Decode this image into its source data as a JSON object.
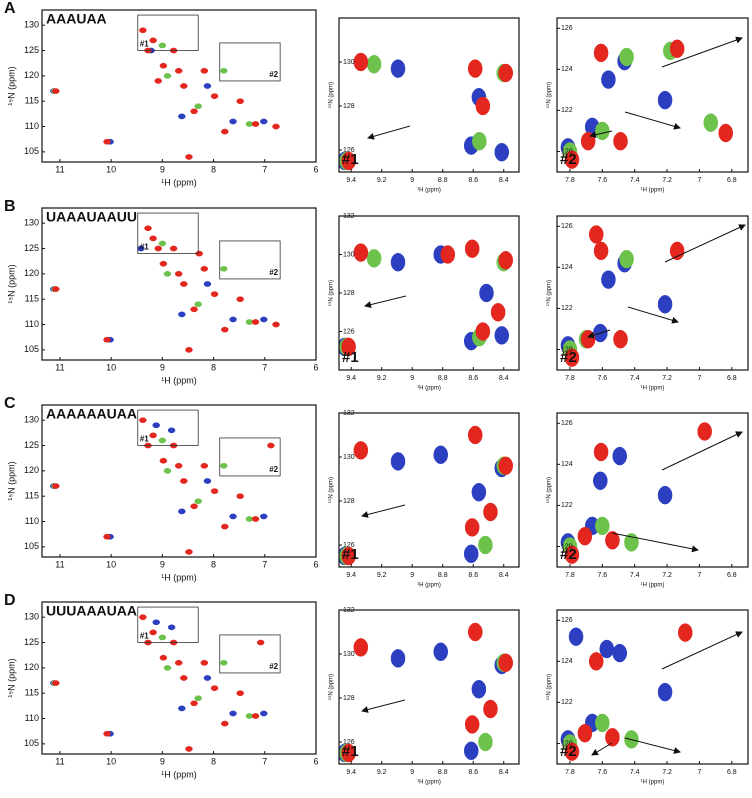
{
  "chart_data": [
    {
      "type": "scatter",
      "panel_label": "A",
      "title": "AAAUAA",
      "x_label": "¹H (ppm)",
      "y_label": "¹⁵N (ppm)",
      "annotations": [
        "#1",
        "#2"
      ],
      "xlim": [
        11.35,
        6.0
      ],
      "ylim": [
        103,
        133
      ],
      "xticks": [
        11,
        10,
        9,
        8,
        7,
        6
      ],
      "yticks": [
        105,
        110,
        115,
        120,
        125,
        130
      ],
      "series": [
        {
          "color": "#2b3fc0",
          "x": [
            11.1,
            10.0,
            8.6,
            8.1,
            7.6,
            9.2,
            7.0
          ],
          "y": [
            117,
            107,
            112,
            118,
            111,
            125,
            111
          ]
        },
        {
          "color": "#6cc24a",
          "x": [
            11.1,
            8.9,
            8.3,
            7.8,
            7.3,
            9.0
          ],
          "y": [
            117,
            120,
            114,
            121,
            110.5,
            126
          ]
        },
        {
          "color": "#e3261e",
          "x": [
            11.1,
            10.1,
            9.4,
            9.2,
            9.0,
            8.8,
            8.6,
            8.4,
            8.2,
            8.0,
            7.8,
            7.5,
            7.2,
            6.8,
            9.3,
            8.5,
            8.7,
            9.1
          ],
          "y": [
            117,
            107,
            129,
            127,
            122,
            125,
            118,
            113,
            121,
            116,
            109,
            115,
            110.5,
            110,
            125,
            104,
            121,
            119
          ]
        }
      ]
    },
    {
      "type": "scatter",
      "title": "#1",
      "x_label": "¹H (ppm)",
      "y_label": "¹⁵N (ppm)",
      "xlim": [
        9.48,
        8.3
      ],
      "ylim": [
        125,
        132
      ],
      "xticks": [
        9.4,
        9.2,
        9.0,
        8.8,
        8.6,
        8.4
      ],
      "yticks": [
        126,
        128,
        130
      ],
      "series": [
        {
          "color": "#2b3fc0",
          "x": [
            9.43,
            9.08,
            8.6,
            8.4,
            8.55
          ],
          "y": [
            125.5,
            129.7,
            126.2,
            125.9,
            128.4
          ]
        },
        {
          "color": "#6cc24a",
          "x": [
            9.43,
            9.25,
            8.56,
            8.4
          ],
          "y": [
            125.5,
            129.9,
            126.4,
            129.5
          ]
        },
        {
          "color": "#e3261e",
          "x": [
            9.43,
            9.35,
            8.6,
            8.4,
            8.55
          ],
          "y": [
            125.5,
            130.0,
            129.7,
            129.5,
            128.0
          ]
        }
      ]
    },
    {
      "type": "scatter",
      "title": "#2",
      "x_label": "¹H (ppm)",
      "y_label": "¹⁵N (ppm)",
      "xlim": [
        7.88,
        6.7
      ],
      "ylim": [
        119,
        126.5
      ],
      "xticks": [
        7.8,
        7.6,
        7.4,
        7.2,
        7.0,
        6.8
      ],
      "yticks": [
        120,
        122,
        124,
        126
      ],
      "series": [
        {
          "color": "#2b3fc0",
          "x": [
            7.8,
            7.65,
            7.2,
            7.45,
            7.55
          ],
          "y": [
            120.2,
            121.2,
            122.5,
            124.4,
            123.5
          ]
        },
        {
          "color": "#6cc24a",
          "x": [
            7.8,
            7.6,
            7.45,
            7.18,
            6.93
          ],
          "y": [
            120,
            121,
            124.6,
            124.9,
            121.4
          ]
        },
        {
          "color": "#e3261e",
          "x": [
            7.8,
            7.7,
            7.5,
            7.62,
            7.15,
            6.85
          ],
          "y": [
            119.6,
            120.5,
            120.5,
            124.8,
            125.0,
            120.9
          ]
        }
      ]
    },
    {
      "type": "scatter",
      "panel_label": "B",
      "title": "UAAAUAAUU",
      "x_label": "¹H (ppm)",
      "y_label": "¹⁵N (ppm)",
      "annotations": [
        "#1",
        "#2"
      ],
      "xlim": [
        11.35,
        6.0
      ],
      "ylim": [
        103,
        133
      ],
      "xticks": [
        11,
        10,
        9,
        8,
        7,
        6
      ],
      "yticks": [
        105,
        110,
        115,
        120,
        125,
        130
      ],
      "series": [
        {
          "color": "#2b3fc0",
          "x": [
            11.1,
            10.0,
            8.6,
            8.1,
            7.6,
            9.4,
            7.0
          ],
          "y": [
            117,
            107,
            112,
            118,
            111,
            125,
            111
          ]
        },
        {
          "color": "#6cc24a",
          "x": [
            11.1,
            8.9,
            8.3,
            7.8,
            7.3,
            9.0
          ],
          "y": [
            117,
            120,
            114,
            121,
            110.5,
            126
          ]
        },
        {
          "color": "#e3261e",
          "x": [
            11.1,
            10.1,
            9.3,
            9.2,
            9.0,
            8.8,
            8.6,
            8.4,
            8.2,
            8.0,
            7.8,
            7.5,
            7.2,
            6.8,
            9.1,
            8.5,
            8.7,
            8.3
          ],
          "y": [
            117,
            107,
            129,
            127,
            122,
            125,
            118,
            113,
            121,
            116,
            109,
            115,
            110.5,
            110,
            125,
            105,
            120,
            124
          ]
        }
      ]
    },
    {
      "type": "scatter",
      "title": "#1",
      "x_label": "¹H (ppm)",
      "y_label": "¹⁵N (ppm)",
      "xlim": [
        9.48,
        8.3
      ],
      "ylim": [
        124,
        132
      ],
      "xticks": [
        9.4,
        9.2,
        9.0,
        8.8,
        8.6,
        8.4
      ],
      "yticks": [
        126,
        128,
        130,
        132
      ],
      "series": [
        {
          "color": "#2b3fc0",
          "x": [
            9.43,
            9.08,
            8.6,
            8.4,
            8.5,
            8.8
          ],
          "y": [
            125.2,
            129.6,
            125.5,
            125.8,
            128.0,
            130.0
          ]
        },
        {
          "color": "#6cc24a",
          "x": [
            9.43,
            9.25,
            8.56,
            8.4
          ],
          "y": [
            125.2,
            129.8,
            125.7,
            129.6
          ]
        },
        {
          "color": "#e3261e",
          "x": [
            9.43,
            9.35,
            8.62,
            8.4,
            8.55,
            8.45,
            8.78
          ],
          "y": [
            125.2,
            130.1,
            130.3,
            129.7,
            126.0,
            127.0,
            130.0
          ]
        }
      ]
    },
    {
      "type": "scatter",
      "title": "#2",
      "x_label": "¹H (ppm)",
      "y_label": "¹⁵N (ppm)",
      "xlim": [
        7.88,
        6.7
      ],
      "ylim": [
        119,
        126.5
      ],
      "xticks": [
        7.8,
        7.6,
        7.4,
        7.2,
        7.0,
        6.8
      ],
      "yticks": [
        120,
        122,
        124,
        126
      ],
      "series": [
        {
          "color": "#2b3fc0",
          "x": [
            7.8,
            7.6,
            7.2,
            7.45,
            7.55
          ],
          "y": [
            120.2,
            120.8,
            122.2,
            124.2,
            123.4
          ]
        },
        {
          "color": "#6cc24a",
          "x": [
            7.8,
            7.7,
            7.45
          ],
          "y": [
            120,
            120.5,
            124.4
          ]
        },
        {
          "color": "#e3261e",
          "x": [
            7.8,
            7.7,
            7.5,
            7.62,
            7.15,
            7.65
          ],
          "y": [
            119.6,
            120.5,
            120.5,
            124.8,
            124.8,
            125.6
          ]
        }
      ]
    },
    {
      "type": "scatter",
      "panel_label": "C",
      "title": "AAAAAAUAA",
      "x_label": "¹H (ppm)",
      "y_label": "¹⁵N (ppm)",
      "annotations": [
        "#1",
        "#2"
      ],
      "xlim": [
        11.35,
        6.0
      ],
      "ylim": [
        103,
        133
      ],
      "xticks": [
        11,
        10,
        9,
        8,
        7,
        6
      ],
      "yticks": [
        105,
        110,
        115,
        120,
        125,
        130
      ],
      "series": [
        {
          "color": "#2b3fc0",
          "x": [
            11.1,
            10.0,
            8.6,
            8.1,
            7.6,
            9.1,
            7.0,
            8.8
          ],
          "y": [
            117,
            107,
            112,
            118,
            111,
            129,
            111,
            128
          ]
        },
        {
          "color": "#6cc24a",
          "x": [
            11.1,
            8.9,
            8.3,
            7.8,
            7.3,
            9.0
          ],
          "y": [
            117,
            120,
            114,
            121,
            110.5,
            126
          ]
        },
        {
          "color": "#e3261e",
          "x": [
            11.1,
            10.1,
            9.4,
            9.2,
            9.0,
            8.8,
            8.6,
            8.4,
            8.2,
            8.0,
            7.8,
            7.5,
            7.2,
            6.9,
            9.3,
            8.5,
            8.7
          ],
          "y": [
            117,
            107,
            130,
            127,
            122,
            125,
            118,
            113,
            121,
            116,
            109,
            115,
            110.5,
            125,
            125,
            104,
            121
          ]
        }
      ]
    },
    {
      "type": "scatter",
      "title": "#1",
      "x_label": "¹H (ppm)",
      "y_label": "¹⁵N (ppm)",
      "xlim": [
        9.48,
        8.3
      ],
      "ylim": [
        125,
        132
      ],
      "xticks": [
        9.4,
        9.2,
        9.0,
        8.8,
        8.6,
        8.4
      ],
      "yticks": [
        126,
        128,
        130,
        132
      ],
      "series": [
        {
          "color": "#2b3fc0",
          "x": [
            9.43,
            9.08,
            8.6,
            8.4,
            8.55,
            8.8
          ],
          "y": [
            125.5,
            129.8,
            125.6,
            129.5,
            128.4,
            130.1
          ]
        },
        {
          "color": "#6cc24a",
          "x": [
            9.43,
            8.52,
            8.4
          ],
          "y": [
            125.5,
            126.0,
            129.6
          ]
        },
        {
          "color": "#e3261e",
          "x": [
            9.43,
            9.35,
            8.6,
            8.4,
            8.62,
            8.5
          ],
          "y": [
            125.5,
            130.3,
            131.0,
            129.6,
            126.8,
            127.5
          ]
        }
      ]
    },
    {
      "type": "scatter",
      "title": "#2",
      "x_label": "¹H (ppm)",
      "y_label": "¹⁵N (ppm)",
      "xlim": [
        7.88,
        6.7
      ],
      "ylim": [
        119,
        126.5
      ],
      "xticks": [
        7.8,
        7.6,
        7.4,
        7.2,
        7.0,
        6.8
      ],
      "yticks": [
        120,
        122,
        124,
        126
      ],
      "series": [
        {
          "color": "#2b3fc0",
          "x": [
            7.8,
            7.65,
            7.2,
            7.48,
            7.6
          ],
          "y": [
            120.2,
            121.0,
            122.5,
            124.4,
            123.2
          ]
        },
        {
          "color": "#6cc24a",
          "x": [
            7.8,
            7.6,
            7.42
          ],
          "y": [
            120,
            121,
            120.2
          ]
        },
        {
          "color": "#e3261e",
          "x": [
            7.8,
            7.72,
            7.55,
            7.62,
            6.98
          ],
          "y": [
            119.6,
            120.5,
            120.3,
            124.6,
            125.6
          ]
        }
      ]
    },
    {
      "type": "scatter",
      "panel_label": "D",
      "title": "UUUAAAUAA",
      "x_label": "¹H (ppm)",
      "y_label": "¹⁵N (ppm)",
      "annotations": [
        "#1",
        "#2"
      ],
      "xlim": [
        11.35,
        6.0
      ],
      "ylim": [
        103,
        133
      ],
      "xticks": [
        11,
        10,
        9,
        8,
        7,
        6
      ],
      "yticks": [
        105,
        110,
        115,
        120,
        125,
        130
      ],
      "series": [
        {
          "color": "#2b3fc0",
          "x": [
            11.1,
            10.0,
            8.6,
            8.1,
            7.6,
            9.1,
            7.0,
            8.8
          ],
          "y": [
            117,
            107,
            112,
            118,
            111,
            129,
            111,
            128
          ]
        },
        {
          "color": "#6cc24a",
          "x": [
            11.1,
            8.9,
            8.3,
            7.8,
            7.3,
            9.0
          ],
          "y": [
            117,
            120,
            114,
            121,
            110.5,
            126
          ]
        },
        {
          "color": "#e3261e",
          "x": [
            11.1,
            10.1,
            9.4,
            9.2,
            9.0,
            8.8,
            8.6,
            8.4,
            8.2,
            8.0,
            7.8,
            7.5,
            7.2,
            7.1,
            9.3,
            8.5,
            8.7
          ],
          "y": [
            117,
            107,
            130,
            127,
            122,
            125,
            118,
            113,
            121,
            116,
            109,
            115,
            110.5,
            125,
            125,
            104,
            121
          ]
        }
      ]
    },
    {
      "type": "scatter",
      "title": "#1",
      "x_label": "¹H (ppm)",
      "y_label": "¹⁵N (ppm)",
      "xlim": [
        9.48,
        8.3
      ],
      "ylim": [
        125,
        132
      ],
      "xticks": [
        9.4,
        9.2,
        9.0,
        8.8,
        8.6,
        8.4
      ],
      "yticks": [
        126,
        128,
        130,
        132
      ],
      "series": [
        {
          "color": "#2b3fc0",
          "x": [
            9.43,
            9.08,
            8.6,
            8.4,
            8.55,
            8.8
          ],
          "y": [
            125.5,
            129.8,
            125.6,
            129.5,
            128.4,
            130.1
          ]
        },
        {
          "color": "#6cc24a",
          "x": [
            9.43,
            8.52,
            8.4
          ],
          "y": [
            125.5,
            126.0,
            129.6
          ]
        },
        {
          "color": "#e3261e",
          "x": [
            9.43,
            9.35,
            8.6,
            8.4,
            8.62,
            8.5
          ],
          "y": [
            125.5,
            130.3,
            131.0,
            129.6,
            126.8,
            127.5
          ]
        }
      ]
    },
    {
      "type": "scatter",
      "title": "#2",
      "x_label": "¹H (ppm)",
      "y_label": "¹⁵N (ppm)",
      "xlim": [
        7.88,
        6.7
      ],
      "ylim": [
        119,
        126.5
      ],
      "xticks": [
        7.8,
        7.6,
        7.4,
        7.2,
        7.0,
        6.8
      ],
      "yticks": [
        120,
        122,
        124,
        126
      ],
      "series": [
        {
          "color": "#2b3fc0",
          "x": [
            7.8,
            7.65,
            7.2,
            7.48,
            7.56,
            7.75
          ],
          "y": [
            120.2,
            121.0,
            122.5,
            124.4,
            124.6,
            125.2
          ]
        },
        {
          "color": "#6cc24a",
          "x": [
            7.8,
            7.6,
            7.42
          ],
          "y": [
            120,
            121,
            120.2
          ]
        },
        {
          "color": "#e3261e",
          "x": [
            7.8,
            7.72,
            7.55,
            7.65,
            7.1
          ],
          "y": [
            119.6,
            120.5,
            120.3,
            124.0,
            125.4
          ]
        }
      ]
    }
  ]
}
